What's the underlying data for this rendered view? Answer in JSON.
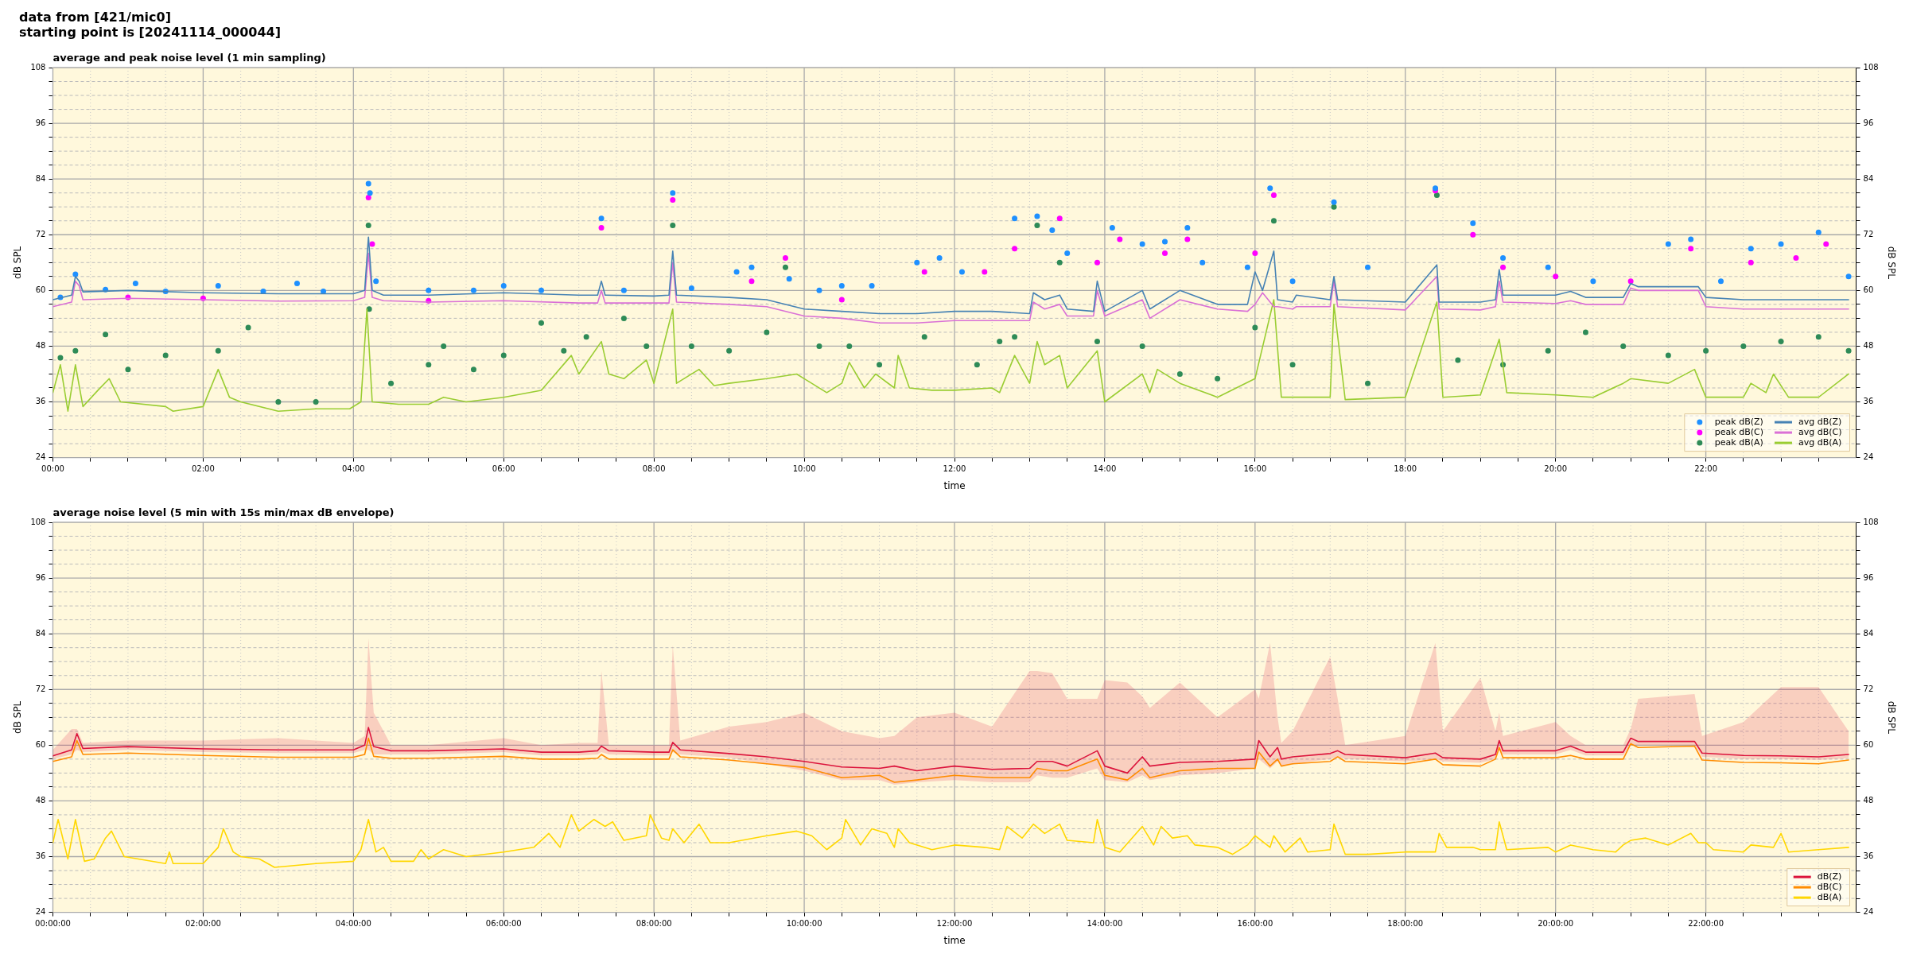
{
  "chart_data": [
    {
      "type": "line",
      "title": "average and peak noise level (1 min sampling)",
      "annotations": [
        "data from [421/mic0]",
        "starting point is [20241114_000044]"
      ],
      "xlabel": "time",
      "ylabel": "dB SPL",
      "y2label": "dB SPL",
      "xlim": [
        0,
        24
      ],
      "xticks": [
        {
          "value": 0,
          "label": "00:00"
        },
        {
          "value": 0.5,
          "label": null
        },
        {
          "value": 1,
          "label": null
        },
        {
          "value": 1.5,
          "label": null
        },
        {
          "value": 2,
          "label": "02:00"
        },
        {
          "value": 2.5,
          "label": null
        },
        {
          "value": 3,
          "label": null
        },
        {
          "value": 3.5,
          "label": null
        },
        {
          "value": 4,
          "label": "04:00"
        },
        {
          "value": 4.5,
          "label": null
        },
        {
          "value": 5,
          "label": null
        },
        {
          "value": 5.5,
          "label": null
        },
        {
          "value": 6,
          "label": "06:00"
        },
        {
          "value": 6.5,
          "label": null
        },
        {
          "value": 7,
          "label": null
        },
        {
          "value": 7.5,
          "label": null
        },
        {
          "value": 8,
          "label": "08:00"
        },
        {
          "value": 8.5,
          "label": null
        },
        {
          "value": 9,
          "label": null
        },
        {
          "value": 9.5,
          "label": null
        },
        {
          "value": 10,
          "label": "10:00"
        },
        {
          "value": 10.5,
          "label": null
        },
        {
          "value": 11,
          "label": null
        },
        {
          "value": 11.5,
          "label": null
        },
        {
          "value": 12,
          "label": "12:00"
        },
        {
          "value": 12.5,
          "label": null
        },
        {
          "value": 13,
          "label": null
        },
        {
          "value": 13.5,
          "label": null
        },
        {
          "value": 14,
          "label": "14:00"
        },
        {
          "value": 14.5,
          "label": null
        },
        {
          "value": 15,
          "label": null
        },
        {
          "value": 15.5,
          "label": null
        },
        {
          "value": 16,
          "label": "16:00"
        },
        {
          "value": 16.5,
          "label": null
        },
        {
          "value": 17,
          "label": null
        },
        {
          "value": 17.5,
          "label": null
        },
        {
          "value": 18,
          "label": "18:00"
        },
        {
          "value": 18.5,
          "label": null
        },
        {
          "value": 19,
          "label": null
        },
        {
          "value": 19.5,
          "label": null
        },
        {
          "value": 20,
          "label": "20:00"
        },
        {
          "value": 20.5,
          "label": null
        },
        {
          "value": 21,
          "label": null
        },
        {
          "value": 21.5,
          "label": null
        },
        {
          "value": 22,
          "label": "22:00"
        },
        {
          "value": 22.5,
          "label": null
        },
        {
          "value": 23,
          "label": null
        },
        {
          "value": 23.5,
          "label": null
        }
      ],
      "ylim": [
        24,
        108
      ],
      "yticks": [
        24,
        {
          "value": 27,
          "label": null
        },
        {
          "value": 30,
          "label": null
        },
        {
          "value": 33,
          "label": null
        },
        36,
        {
          "value": 39,
          "label": null
        },
        {
          "value": 42,
          "label": null
        },
        {
          "value": 45,
          "label": null
        },
        48,
        {
          "value": 51,
          "label": null
        },
        {
          "value": 54,
          "label": null
        },
        {
          "value": 57,
          "label": null
        },
        60,
        {
          "value": 63,
          "label": null
        },
        {
          "value": 66,
          "label": null
        },
        {
          "value": 69,
          "label": null
        },
        72,
        {
          "value": 75,
          "label": null
        },
        {
          "value": 78,
          "label": null
        },
        {
          "value": 81,
          "label": null
        },
        84,
        {
          "value": 87,
          "label": null
        },
        {
          "value": 90,
          "label": null
        },
        {
          "value": 93,
          "label": null
        },
        96,
        {
          "value": 99,
          "label": null
        },
        {
          "value": 102,
          "label": null
        },
        {
          "value": 105,
          "label": null
        },
        108
      ],
      "y2lim": [
        24,
        108
      ],
      "y2ticks": [
        24,
        {
          "value": 27,
          "label": null
        },
        {
          "value": 30,
          "label": null
        },
        {
          "value": 33,
          "label": null
        },
        36,
        {
          "value": 39,
          "label": null
        },
        {
          "value": 42,
          "label": null
        },
        {
          "value": 45,
          "label": null
        },
        48,
        {
          "value": 51,
          "label": null
        },
        {
          "value": 54,
          "label": null
        },
        {
          "value": 57,
          "label": null
        },
        60,
        {
          "value": 63,
          "label": null
        },
        {
          "value": 66,
          "label": null
        },
        {
          "value": 69,
          "label": null
        },
        72,
        {
          "value": 75,
          "label": null
        },
        {
          "value": 78,
          "label": null
        },
        {
          "value": 81,
          "label": null
        },
        84,
        {
          "value": 87,
          "label": null
        },
        {
          "value": 90,
          "label": null
        },
        {
          "value": 93,
          "label": null
        },
        96,
        {
          "value": 99,
          "label": null
        },
        {
          "value": 102,
          "label": null
        },
        {
          "value": 105,
          "label": null
        },
        108
      ],
      "grid": true,
      "legend": "bottom right",
      "series": [
        {
          "type": "scatter",
          "marker": "circle",
          "name": "peak dB(Z)",
          "color": "#1e90ff",
          "x": [
            0.1,
            0.3,
            0.7,
            1.1,
            1.5,
            2.2,
            2.8,
            3.25,
            3.6,
            4.2,
            4.22,
            4.3,
            5,
            5.6,
            6,
            6.5,
            7.3,
            7.6,
            8.25,
            8.5,
            9.1,
            9.3,
            9.8,
            10.2,
            10.5,
            10.9,
            11.5,
            11.8,
            12.1,
            12.8,
            13.1,
            13.3,
            13.5,
            14.1,
            14.5,
            14.8,
            15.1,
            15.3,
            15.9,
            16.2,
            16.5,
            17.05,
            17.5,
            18.4,
            18.9,
            19.3,
            19.9,
            20.5,
            21.5,
            21.8,
            22.2,
            22.6,
            23,
            23.5,
            23.9
          ],
          "values": [
            58.5,
            63.5,
            60.2,
            61.5,
            59.8,
            61,
            59.8,
            61.5,
            59.8,
            83,
            81,
            62,
            60,
            60,
            61,
            60,
            75.5,
            60,
            81,
            60.5,
            64,
            65,
            62.5,
            60,
            61,
            61,
            66,
            67,
            64,
            75.5,
            76,
            73,
            68,
            73.5,
            70,
            70.5,
            73.5,
            66,
            65,
            82,
            62,
            79,
            65,
            82,
            74.5,
            67,
            65,
            62,
            70,
            71,
            62,
            69,
            70,
            72.5,
            63
          ]
        },
        {
          "type": "scatter",
          "marker": "circle",
          "name": "peak dB(C)",
          "color": "#ff00ff",
          "x": [
            1,
            2,
            4.2,
            4.25,
            5,
            7.3,
            8.25,
            9.3,
            9.75,
            10.5,
            11.6,
            12.4,
            12.8,
            13.4,
            13.9,
            14.2,
            14.8,
            15.1,
            16,
            16.25,
            18.4,
            18.9,
            19.3,
            20,
            21,
            21.8,
            22.6,
            23.2,
            23.6
          ],
          "values": [
            58.5,
            58.3,
            80,
            70,
            57.8,
            73.5,
            79.5,
            62,
            67,
            58,
            64,
            64,
            69,
            75.5,
            66,
            71,
            68,
            71,
            68,
            80.5,
            81.5,
            72,
            65,
            63,
            62,
            69,
            66,
            67,
            70
          ]
        },
        {
          "type": "scatter",
          "marker": "circle",
          "name": "peak dB(A)",
          "color": "#2e8b57",
          "x": [
            0.1,
            0.3,
            0.7,
            1,
            1.5,
            2.2,
            2.6,
            3,
            3.5,
            4.2,
            4.21,
            4.5,
            5,
            5.2,
            5.6,
            6,
            6.5,
            6.8,
            7.1,
            7.6,
            7.9,
            8.25,
            8.5,
            9,
            9.5,
            9.75,
            10.2,
            10.6,
            11,
            11.6,
            12.3,
            12.6,
            12.8,
            13.1,
            13.4,
            13.9,
            14.5,
            15,
            15.5,
            16,
            16.25,
            16.5,
            17.05,
            17.5,
            18.42,
            18.7,
            19.3,
            19.9,
            20.4,
            20.9,
            21.5,
            22,
            22.5,
            23,
            23.5,
            23.9
          ],
          "values": [
            45.5,
            47,
            50.5,
            43,
            46,
            47,
            52,
            36,
            36,
            74,
            56,
            40,
            44,
            48,
            43,
            46,
            53,
            47,
            50,
            54,
            48,
            74,
            48,
            47,
            51,
            65,
            48,
            48,
            44,
            50,
            44,
            49,
            50,
            74,
            66,
            49,
            48,
            42,
            41,
            52,
            75,
            44,
            78,
            40,
            80.5,
            45,
            44,
            47,
            51,
            48,
            46,
            47,
            48,
            49,
            50,
            47
          ]
        },
        {
          "type": "line",
          "name": "avg dB(Z)",
          "color": "#4682b4",
          "x": [
            0,
            0.25,
            0.3,
            0.35,
            0.4,
            1,
            2,
            3,
            4,
            4.15,
            4.2,
            4.25,
            4.4,
            5,
            6,
            7,
            7.25,
            7.3,
            7.35,
            8,
            8.2,
            8.25,
            8.3,
            9,
            9.5,
            10,
            10.5,
            11,
            11.5,
            12,
            12.5,
            13,
            13.05,
            13.2,
            13.4,
            13.5,
            13.85,
            13.9,
            14,
            14.5,
            14.6,
            15,
            15.5,
            15.9,
            16,
            16.1,
            16.25,
            16.3,
            16.5,
            16.55,
            17,
            17.05,
            17.1,
            18,
            18.42,
            18.45,
            19,
            19.2,
            19.25,
            19.3,
            20,
            20.2,
            20.4,
            20.9,
            21,
            21.1,
            21.9,
            22,
            22.5,
            23,
            23.5,
            23.9
          ],
          "values": [
            58,
            59,
            63,
            62,
            59.7,
            60,
            59.5,
            59.3,
            59.3,
            60,
            71.5,
            60,
            59,
            59,
            59.5,
            59,
            59,
            62,
            59,
            58.8,
            59,
            68.5,
            59,
            58.5,
            58,
            56,
            55.5,
            55,
            55,
            55.5,
            55.5,
            55,
            59.5,
            58,
            59,
            56,
            55.5,
            62,
            55.5,
            60,
            56,
            60,
            57,
            57,
            64,
            60,
            68.5,
            58,
            57.5,
            59,
            58,
            63,
            58,
            57.5,
            65.5,
            57.5,
            57.5,
            58,
            64.5,
            59,
            59,
            59.8,
            58.5,
            58.5,
            61.5,
            60.8,
            60.8,
            58.5,
            58,
            58,
            58,
            58
          ]
        },
        {
          "type": "line",
          "name": "avg dB(C)",
          "color": "#da70d6",
          "x": [
            0,
            0.25,
            0.3,
            0.35,
            0.4,
            1,
            2,
            3,
            4,
            4.15,
            4.2,
            4.25,
            4.4,
            5,
            6,
            7,
            7.25,
            7.3,
            7.35,
            8,
            8.2,
            8.25,
            8.3,
            9,
            9.5,
            10,
            10.5,
            11,
            11.5,
            12,
            12.5,
            13,
            13.05,
            13.2,
            13.4,
            13.5,
            13.85,
            13.9,
            14,
            14.5,
            14.6,
            15,
            15.5,
            15.9,
            16,
            16.1,
            16.25,
            16.3,
            16.5,
            16.55,
            17,
            17.05,
            17.1,
            18,
            18.42,
            18.45,
            19,
            19.2,
            19.25,
            19.3,
            20,
            20.2,
            20.4,
            20.9,
            21,
            21.1,
            21.9,
            22,
            22.5,
            23,
            23.5,
            23.9
          ],
          "values": [
            56.5,
            57.5,
            62,
            61,
            58,
            58.3,
            58,
            57.7,
            57.8,
            58.5,
            68,
            58.5,
            57.8,
            57.5,
            57.8,
            57.3,
            57.3,
            60,
            57.3,
            57.3,
            57.3,
            66,
            57.5,
            57,
            56.5,
            54.5,
            54,
            53,
            53,
            53.5,
            53.5,
            53.5,
            57.5,
            56,
            57,
            54.5,
            54.5,
            60,
            54.5,
            58,
            54,
            58,
            56,
            55.5,
            57,
            59.5,
            56.5,
            56.5,
            56,
            56.5,
            56.5,
            62,
            56.5,
            55.8,
            63,
            56,
            55.8,
            56.5,
            62,
            57.5,
            57.2,
            57.8,
            57,
            57,
            60.5,
            60,
            60,
            56.5,
            56,
            56,
            56,
            56
          ]
        },
        {
          "type": "line",
          "name": "avg dB(A)",
          "color": "#9acd32",
          "x": [
            0,
            0.1,
            0.2,
            0.3,
            0.4,
            0.6,
            0.75,
            0.9,
            1.5,
            1.6,
            2,
            2.2,
            2.35,
            2.5,
            3,
            3.5,
            3.95,
            4.1,
            4.18,
            4.25,
            4.6,
            5,
            5.2,
            5.5,
            6,
            6.5,
            6.9,
            7,
            7.3,
            7.4,
            7.6,
            7.9,
            8,
            8.25,
            8.3,
            8.6,
            8.8,
            9,
            9.5,
            9.9,
            10,
            10.3,
            10.5,
            10.6,
            10.8,
            10.95,
            11.2,
            11.25,
            11.4,
            11.7,
            12,
            12.5,
            12.6,
            12.8,
            12.9,
            13,
            13.1,
            13.2,
            13.4,
            13.5,
            13.9,
            14,
            14.5,
            14.6,
            14.7,
            15,
            15.5,
            16,
            16.25,
            16.35,
            17,
            17.05,
            17.2,
            18,
            18.42,
            18.5,
            19,
            19.25,
            19.35,
            20,
            20.5,
            20.9,
            21,
            21.5,
            21.85,
            22,
            22.5,
            22.6,
            22.8,
            22.9,
            23.1,
            23.5,
            23.9
          ],
          "values": [
            38,
            44,
            34,
            44,
            35,
            38.5,
            41,
            36,
            35,
            34,
            35,
            43,
            37,
            36,
            34,
            34.5,
            34.5,
            36,
            56,
            36,
            35.5,
            35.5,
            37,
            36,
            37,
            38.5,
            46,
            42,
            49,
            42,
            41,
            45,
            40,
            56,
            40,
            43,
            39.5,
            40,
            41,
            42,
            41,
            38,
            40,
            44.5,
            39,
            42,
            39,
            46,
            39,
            38.5,
            38.5,
            39,
            38,
            46,
            43,
            40,
            49,
            44,
            46,
            39,
            47,
            36,
            42,
            38,
            43,
            40,
            37,
            41,
            58,
            37,
            37,
            57,
            36.5,
            37,
            57.5,
            37,
            37.5,
            49.5,
            38,
            37.5,
            37,
            40,
            41,
            40,
            43,
            37,
            37,
            40,
            38,
            42,
            37,
            37,
            42
          ]
        }
      ]
    },
    {
      "type": "line",
      "title": "average noise level (5 min with 15s min/max dB envelope)",
      "xlabel": "time",
      "ylabel": "dB SPL",
      "y2label": "dB SPL",
      "xlim": [
        0,
        24
      ],
      "xticks": [
        {
          "value": 0,
          "label": "00:00:00"
        },
        {
          "value": 0.5,
          "label": null
        },
        {
          "value": 1,
          "label": null
        },
        {
          "value": 1.5,
          "label": null
        },
        {
          "value": 2,
          "label": "02:00:00"
        },
        {
          "value": 2.5,
          "label": null
        },
        {
          "value": 3,
          "label": null
        },
        {
          "value": 3.5,
          "label": null
        },
        {
          "value": 4,
          "label": "04:00:00"
        },
        {
          "value": 4.5,
          "label": null
        },
        {
          "value": 5,
          "label": null
        },
        {
          "value": 5.5,
          "label": null
        },
        {
          "value": 6,
          "label": "06:00:00"
        },
        {
          "value": 6.5,
          "label": null
        },
        {
          "value": 7,
          "label": null
        },
        {
          "value": 7.5,
          "label": null
        },
        {
          "value": 8,
          "label": "08:00:00"
        },
        {
          "value": 8.5,
          "label": null
        },
        {
          "value": 9,
          "label": null
        },
        {
          "value": 9.5,
          "label": null
        },
        {
          "value": 10,
          "label": "10:00:00"
        },
        {
          "value": 10.5,
          "label": null
        },
        {
          "value": 11,
          "label": null
        },
        {
          "value": 11.5,
          "label": null
        },
        {
          "value": 12,
          "label": "12:00:00"
        },
        {
          "value": 12.5,
          "label": null
        },
        {
          "value": 13,
          "label": null
        },
        {
          "value": 13.5,
          "label": null
        },
        {
          "value": 14,
          "label": "14:00:00"
        },
        {
          "value": 14.5,
          "label": null
        },
        {
          "value": 15,
          "label": null
        },
        {
          "value": 15.5,
          "label": null
        },
        {
          "value": 16,
          "label": "16:00:00"
        },
        {
          "value": 16.5,
          "label": null
        },
        {
          "value": 17,
          "label": null
        },
        {
          "value": 17.5,
          "label": null
        },
        {
          "value": 18,
          "label": "18:00:00"
        },
        {
          "value": 18.5,
          "label": null
        },
        {
          "value": 19,
          "label": null
        },
        {
          "value": 19.5,
          "label": null
        },
        {
          "value": 20,
          "label": "20:00:00"
        },
        {
          "value": 20.5,
          "label": null
        },
        {
          "value": 21,
          "label": null
        },
        {
          "value": 21.5,
          "label": null
        },
        {
          "value": 22,
          "label": "22:00:00"
        },
        {
          "value": 22.5,
          "label": null
        },
        {
          "value": 23,
          "label": null
        },
        {
          "value": 23.5,
          "label": null
        }
      ],
      "ylim": [
        24,
        108
      ],
      "yticks": [
        24,
        {
          "value": 27,
          "label": null
        },
        {
          "value": 30,
          "label": null
        },
        {
          "value": 33,
          "label": null
        },
        36,
        {
          "value": 39,
          "label": null
        },
        {
          "value": 42,
          "label": null
        },
        {
          "value": 45,
          "label": null
        },
        48,
        {
          "value": 51,
          "label": null
        },
        {
          "value": 54,
          "label": null
        },
        {
          "value": 57,
          "label": null
        },
        60,
        {
          "value": 63,
          "label": null
        },
        {
          "value": 66,
          "label": null
        },
        {
          "value": 69,
          "label": null
        },
        72,
        {
          "value": 75,
          "label": null
        },
        {
          "value": 78,
          "label": null
        },
        {
          "value": 81,
          "label": null
        },
        84,
        {
          "value": 87,
          "label": null
        },
        {
          "value": 90,
          "label": null
        },
        {
          "value": 93,
          "label": null
        },
        96,
        {
          "value": 99,
          "label": null
        },
        {
          "value": 102,
          "label": null
        },
        {
          "value": 105,
          "label": null
        },
        108
      ],
      "y2lim": [
        24,
        108
      ],
      "y2ticks": [
        24,
        {
          "value": 27,
          "label": null
        },
        {
          "value": 30,
          "label": null
        },
        {
          "value": 33,
          "label": null
        },
        36,
        {
          "value": 39,
          "label": null
        },
        {
          "value": 42,
          "label": null
        },
        {
          "value": 45,
          "label": null
        },
        48,
        {
          "value": 51,
          "label": null
        },
        {
          "value": 54,
          "label": null
        },
        {
          "value": 57,
          "label": null
        },
        60,
        {
          "value": 63,
          "label": null
        },
        {
          "value": 66,
          "label": null
        },
        {
          "value": 69,
          "label": null
        },
        72,
        {
          "value": 75,
          "label": null
        },
        {
          "value": 78,
          "label": null
        },
        {
          "value": 81,
          "label": null
        },
        84,
        {
          "value": 87,
          "label": null
        },
        {
          "value": 90,
          "label": null
        },
        {
          "value": 93,
          "label": null
        },
        96,
        {
          "value": 99,
          "label": null
        },
        {
          "value": 102,
          "label": null
        },
        {
          "value": 105,
          "label": null
        },
        108
      ],
      "grid": true,
      "legend": "bottom right",
      "series": [
        {
          "name": "dB(Z)",
          "color": "#dc143c",
          "x": [
            0,
            0.25,
            0.32,
            0.4,
            1,
            2,
            3,
            4,
            4.15,
            4.2,
            4.27,
            4.5,
            5,
            6,
            6.5,
            7,
            7.25,
            7.3,
            7.4,
            8,
            8.2,
            8.25,
            8.35,
            9,
            9.5,
            10,
            10.5,
            11,
            11.2,
            11.5,
            12,
            12.5,
            13,
            13.1,
            13.3,
            13.5,
            13.9,
            14,
            14.3,
            14.5,
            14.6,
            15,
            15.5,
            16,
            16.05,
            16.2,
            16.3,
            16.35,
            16.5,
            17,
            17.1,
            17.2,
            18,
            18.4,
            18.5,
            19,
            19.2,
            19.25,
            19.3,
            20,
            20.2,
            20.4,
            20.9,
            21,
            21.1,
            21.85,
            21.95,
            22.5,
            23,
            23.5,
            23.9
          ],
          "values": [
            57.7,
            59,
            62.5,
            59.3,
            59.7,
            59.2,
            59,
            59,
            60,
            63.8,
            59.7,
            58.8,
            58.8,
            59.2,
            58.5,
            58.5,
            58.8,
            59.8,
            58.8,
            58.5,
            58.5,
            60.6,
            59,
            58.2,
            57.5,
            56.5,
            55.3,
            55,
            55.5,
            54.5,
            55.5,
            54.8,
            55,
            56.5,
            56.5,
            55.5,
            58.8,
            55.5,
            54,
            57.5,
            55.5,
            56.3,
            56.5,
            57,
            61,
            57.5,
            59.5,
            57,
            57.5,
            58.2,
            58.8,
            58,
            57.3,
            58.3,
            57.3,
            57,
            58,
            61,
            58.8,
            58.8,
            59.8,
            58.5,
            58.5,
            61.5,
            60.8,
            60.8,
            58.3,
            57.8,
            57.7,
            57.5,
            58
          ],
          "lower": [
            57,
            58,
            59,
            58.5,
            59,
            58.5,
            58.3,
            58.3,
            59,
            59,
            58,
            58,
            58,
            58.5,
            57.8,
            57.8,
            58,
            58.5,
            58,
            57.8,
            57.8,
            58.5,
            58,
            57.3,
            56,
            54.5,
            52.5,
            52.5,
            51.5,
            52,
            52.5,
            52,
            52,
            53.5,
            53,
            53,
            55,
            52.5,
            52,
            53.5,
            52.5,
            53.5,
            54,
            55,
            57,
            55,
            56.5,
            55.5,
            56,
            57,
            57.5,
            57,
            56.5,
            57,
            56.5,
            56.2,
            57,
            59,
            58,
            58,
            59,
            57.8,
            57.8,
            60,
            60,
            60,
            57.5,
            57,
            57,
            56.8,
            57.2
          ],
          "upper": [
            59,
            63.5,
            63.5,
            60.5,
            61,
            61,
            61.5,
            60.5,
            62,
            83,
            67,
            60,
            60,
            61.5,
            60,
            60.5,
            60.5,
            76,
            60,
            60,
            60,
            81.5,
            61,
            64,
            65,
            67,
            63,
            61.5,
            62,
            66,
            67,
            64,
            76,
            76,
            75.5,
            70,
            70,
            74,
            73.5,
            70.5,
            68,
            73.5,
            66,
            72,
            70,
            82,
            66,
            60.5,
            63,
            79,
            70,
            60,
            62,
            82,
            63,
            74.5,
            63,
            67,
            62,
            65,
            62,
            60,
            60,
            63.5,
            70,
            71,
            62,
            65,
            72.5,
            72.5,
            63
          ]
        },
        {
          "name": "dB(C)",
          "color": "#ff8c00",
          "x": [
            0,
            0.25,
            0.32,
            0.4,
            1,
            2,
            3,
            4,
            4.15,
            4.2,
            4.27,
            4.5,
            5,
            6,
            6.5,
            7,
            7.25,
            7.3,
            7.4,
            8,
            8.2,
            8.25,
            8.35,
            9,
            9.5,
            10,
            10.5,
            11,
            11.2,
            11.5,
            12,
            12.5,
            13,
            13.1,
            13.3,
            13.5,
            13.9,
            14,
            14.3,
            14.5,
            14.6,
            15,
            15.5,
            16,
            16.05,
            16.2,
            16.3,
            16.35,
            16.5,
            17,
            17.1,
            17.2,
            18,
            18.4,
            18.5,
            19,
            19.2,
            19.25,
            19.3,
            20,
            20.2,
            20.4,
            20.9,
            21,
            21.1,
            21.85,
            21.95,
            22.5,
            23,
            23.5,
            23.9
          ],
          "values": [
            56.5,
            57.5,
            61,
            58,
            58.3,
            57.8,
            57.4,
            57.4,
            58,
            61.5,
            57.6,
            57.2,
            57.2,
            57.6,
            57,
            57,
            57.2,
            58,
            57,
            57,
            57,
            59,
            57.5,
            56.8,
            56,
            55.2,
            53,
            53.5,
            52,
            52.5,
            53.5,
            53,
            53,
            55,
            54.5,
            54.5,
            57,
            53.5,
            52.5,
            55,
            53,
            54.5,
            55,
            55,
            58.5,
            55.5,
            57,
            55.5,
            56,
            56.5,
            57.5,
            56.5,
            56,
            57,
            55.8,
            55.5,
            57,
            59.5,
            57.3,
            57.3,
            57.8,
            57,
            57,
            60.3,
            59.5,
            59.8,
            56.8,
            56.3,
            56.2,
            56,
            56.8
          ]
        },
        {
          "name": "dB(A)",
          "color": "#ffd700",
          "x": [
            0,
            0.07,
            0.2,
            0.3,
            0.42,
            0.55,
            0.7,
            0.78,
            0.95,
            1.5,
            1.55,
            1.6,
            2,
            2.2,
            2.27,
            2.4,
            2.5,
            2.75,
            2.95,
            3.5,
            4,
            4.1,
            4.2,
            4.3,
            4.4,
            4.5,
            4.8,
            4.9,
            5,
            5.2,
            5.5,
            6,
            6.4,
            6.6,
            6.75,
            6.9,
            7,
            7.2,
            7.35,
            7.45,
            7.6,
            7.9,
            7.95,
            8.1,
            8.2,
            8.25,
            8.4,
            8.6,
            8.75,
            9,
            9.5,
            9.9,
            10.1,
            10.3,
            10.5,
            10.55,
            10.75,
            10.9,
            11.1,
            11.2,
            11.25,
            11.4,
            11.7,
            12,
            12.4,
            12.6,
            12.7,
            12.9,
            13.05,
            13.2,
            13.4,
            13.5,
            13.85,
            13.9,
            14,
            14.2,
            14.5,
            14.65,
            14.75,
            14.9,
            15.1,
            15.2,
            15.5,
            15.7,
            15.9,
            16,
            16.2,
            16.25,
            16.4,
            16.6,
            16.7,
            17,
            17.05,
            17.2,
            17.5,
            18,
            18.4,
            18.45,
            18.55,
            18.9,
            19,
            19.2,
            19.25,
            19.35,
            19.9,
            20,
            20.2,
            20.5,
            20.8,
            20.9,
            21,
            21.2,
            21.5,
            21.8,
            21.9,
            22,
            22.1,
            22.5,
            22.6,
            22.9,
            23,
            23.1,
            23.5,
            23.9
          ],
          "values": [
            39,
            44,
            35.5,
            44,
            35,
            35.5,
            40,
            41.5,
            36,
            34.5,
            37,
            34.5,
            34.5,
            38,
            42,
            37,
            36,
            35.5,
            33.7,
            34.5,
            35,
            37.5,
            44,
            37,
            38,
            35,
            35,
            37.5,
            35.5,
            37.5,
            36,
            37,
            38,
            41,
            38,
            45,
            41.5,
            44,
            42.5,
            43.5,
            39.5,
            40.5,
            45,
            40,
            39.5,
            42,
            39,
            43,
            39,
            39,
            40.5,
            41.5,
            40.5,
            37.5,
            40,
            44,
            38.5,
            42,
            41,
            38,
            42,
            39,
            37.5,
            38.5,
            38,
            37.5,
            42.5,
            40,
            43,
            41,
            43,
            39.5,
            39,
            44,
            38,
            37,
            42.5,
            38.5,
            42.5,
            40,
            40.5,
            38.5,
            38,
            36.5,
            38.5,
            40.5,
            38,
            40.5,
            37,
            40,
            37,
            37.5,
            43,
            36.5,
            36.5,
            37,
            37,
            41,
            38,
            38,
            37.5,
            37.5,
            43.5,
            37.5,
            38,
            37,
            38.5,
            37.5,
            37,
            38.5,
            39.5,
            40,
            38.5,
            41,
            39,
            39,
            37.5,
            37,
            38.5,
            38,
            41,
            37,
            37.5,
            38
          ]
        }
      ]
    }
  ]
}
